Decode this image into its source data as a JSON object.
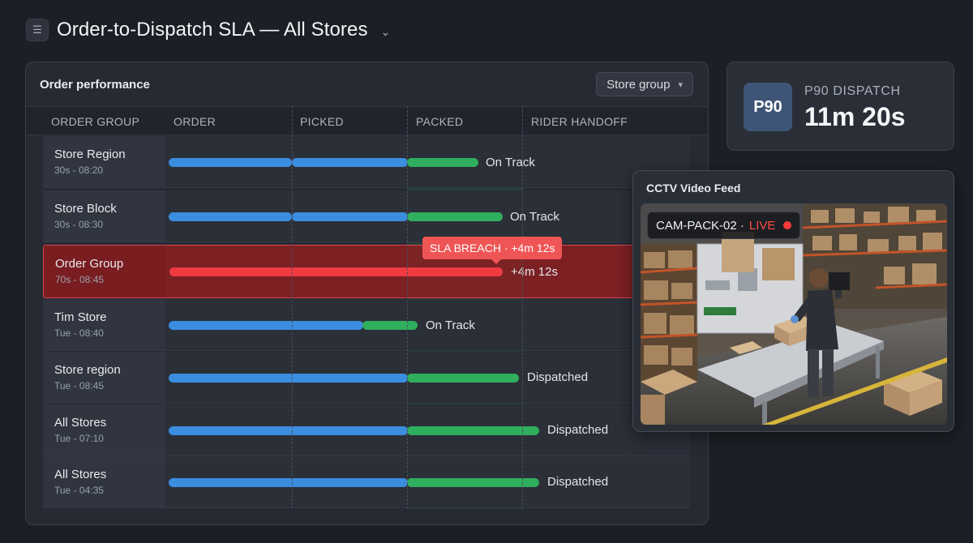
{
  "header": {
    "title": "Order-to-Dispatch SLA — All Stores"
  },
  "panel": {
    "title": "Order performance",
    "filter_label": "Store group",
    "columns": [
      "ORDER GROUP",
      "ORDER",
      "PICKED",
      "PACKED",
      "RIDER HANDOFF"
    ]
  },
  "rows": [
    {
      "name": "Store Region",
      "sub": "30s - 08:20",
      "status": "On Track"
    },
    {
      "name": "Store Block",
      "sub": "30s - 08:30",
      "status": "On Track"
    },
    {
      "name": "Order Group",
      "sub": "70s - 08:45",
      "status": "+4m 12s"
    },
    {
      "name": "Tim Store",
      "sub": "Tue - 08:40",
      "status": "On Track"
    },
    {
      "name": "Store region",
      "sub": "Tue - 08:45",
      "status": "Dispatched"
    },
    {
      "name": "All Stores",
      "sub": "Tue - 07:10",
      "status": "Dispatched"
    },
    {
      "name": "All Stores",
      "sub": "Tue - 04:35",
      "status": "Dispatched"
    }
  ],
  "breach_tooltip": "SLA BREACH · +4m 12s",
  "kpi": {
    "badge": "P90",
    "label": "P90 DISPATCH",
    "value": "11m 20s"
  },
  "cctv": {
    "title": "CCTV Video Feed",
    "camera": "CAM-PACK-02 ·",
    "live": "LIVE"
  },
  "colors": {
    "order": "#3b8de0",
    "packed": "#2fae5e",
    "breach": "#ef3b40"
  }
}
